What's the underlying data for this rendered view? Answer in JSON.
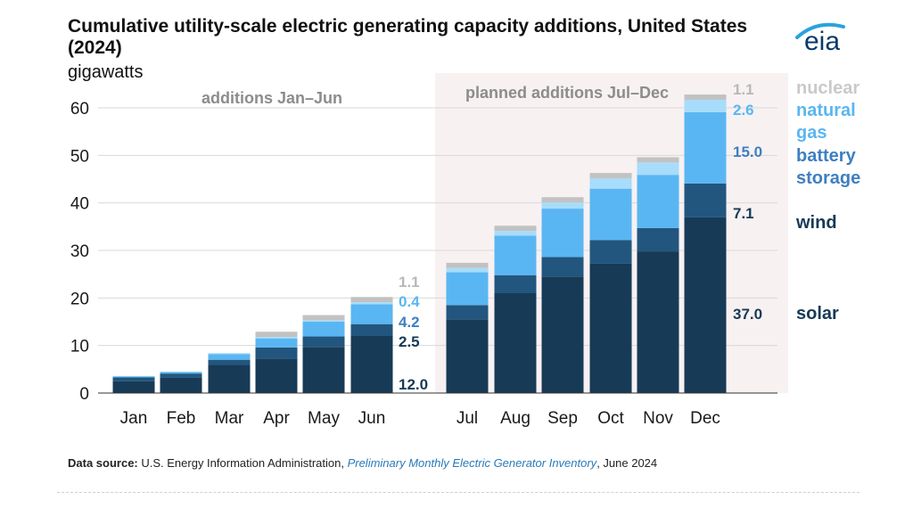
{
  "header": {
    "title": "Cumulative utility-scale electric generating capacity additions, United States (2024)",
    "unit": "gigawatts",
    "logo_text": "eia"
  },
  "colors": {
    "solar": "#173a56",
    "wind": "#22567e",
    "battery": "#5ab6f2",
    "natural_gas": "#a7dcfb",
    "nuclear": "#c2c2c2",
    "planned_shade": "#f7f1f2",
    "legend_solar": "#173a56",
    "legend_wind": "#173a56",
    "legend_battery": "#3f7fc0",
    "legend_gas": "#5ab6f2",
    "legend_nuclear": "#c9c9c9"
  },
  "chart_data": {
    "type": "bar",
    "stacked": true,
    "title": "Cumulative utility-scale electric generating capacity additions, United States (2024)",
    "ylabel": "gigawatts",
    "ylim": [
      0,
      60
    ],
    "yticks": [
      "0",
      "10",
      "20",
      "30",
      "40",
      "50",
      "60"
    ],
    "categories": [
      "Jan",
      "Feb",
      "Mar",
      "Apr",
      "May",
      "Jun",
      "Jul",
      "Aug",
      "Sep",
      "Oct",
      "Nov",
      "Dec"
    ],
    "series": [
      {
        "name": "solar",
        "key": "solar",
        "values": [
          2.5,
          3.2,
          5.9,
          7.2,
          9.7,
          12.0,
          15.5,
          21.0,
          24.5,
          27.2,
          29.8,
          37.0
        ]
      },
      {
        "name": "wind",
        "key": "wind",
        "values": [
          0.8,
          0.9,
          1.1,
          2.4,
          2.2,
          2.5,
          3.0,
          3.8,
          4.1,
          5.0,
          4.9,
          7.1
        ]
      },
      {
        "name": "battery storage",
        "key": "battery",
        "values": [
          0.2,
          0.3,
          1.2,
          1.9,
          3.1,
          4.2,
          6.9,
          8.3,
          10.2,
          10.8,
          11.2,
          15.0
        ]
      },
      {
        "name": "natural gas",
        "key": "natural_gas",
        "values": [
          0.1,
          0.1,
          0.2,
          0.3,
          0.3,
          0.4,
          0.9,
          1.0,
          1.3,
          2.2,
          2.6,
          2.6
        ]
      },
      {
        "name": "nuclear",
        "key": "nuclear",
        "values": [
          0.0,
          0.0,
          0.0,
          1.1,
          1.1,
          1.1,
          1.1,
          1.1,
          1.1,
          1.1,
          1.1,
          1.1
        ]
      }
    ],
    "section_labels": {
      "actual": "additions Jan–Jun",
      "planned": "planned additions Jul–Dec"
    },
    "jun_labels": {
      "solar": "12.0",
      "wind": "2.5",
      "battery": "4.2",
      "natural_gas": "0.4",
      "nuclear": "1.1"
    },
    "dec_labels": {
      "solar": "37.0",
      "wind": "7.1",
      "battery": "15.0",
      "natural_gas": "2.6",
      "nuclear": "1.1"
    },
    "legend": {
      "nuclear": "nuclear",
      "natural_gas_1": "natural",
      "natural_gas_2": "gas",
      "battery_1": "battery",
      "battery_2": "storage",
      "wind": "wind",
      "solar": "solar"
    }
  },
  "footer": {
    "source_label": "Data source:",
    "source_org": " U.S. Energy Information Administration, ",
    "source_pub": "Preliminary Monthly Electric Generator Inventory",
    "source_date": ", June 2024"
  }
}
